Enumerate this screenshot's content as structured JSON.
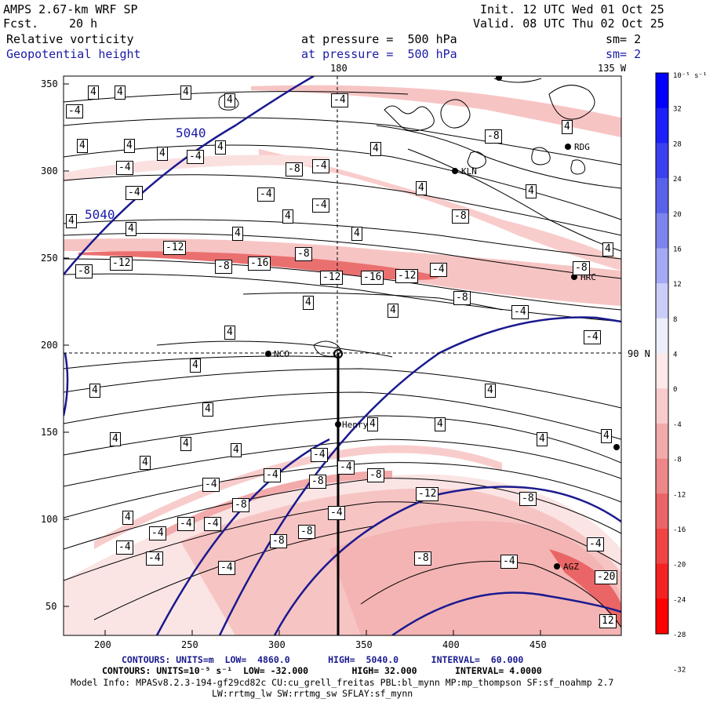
{
  "header": {
    "title": "AMPS 2.67-km WRF SP",
    "fcst_label": "Fcst.",
    "fcst_value": "20 h",
    "init": "Init. 12 UTC Wed 01 Oct 25",
    "valid": "Valid. 08 UTC Thu 02 Oct 25",
    "field1": "Relative vorticity",
    "field2": "Geopotential height",
    "pressure1": "at pressure =  500 hPa",
    "pressure2": "at pressure =  500 hPa",
    "sm1": "sm= 2",
    "sm2": "sm= 2"
  },
  "map": {
    "lon_180": "180",
    "lon_135w": "135 W",
    "lat_90n": "90 N",
    "x_ticks": [
      "200",
      "250",
      "300",
      "350",
      "400",
      "450"
    ],
    "y_ticks": [
      "350",
      "300",
      "250",
      "200",
      "150",
      "100",
      "50"
    ],
    "stations": {
      "nco": "NCO",
      "henry": "Henry",
      "kln": "KLN",
      "rdg": "RDG",
      "hrc": "HRC",
      "agz": "AGZ"
    },
    "height_labels": [
      "5040",
      "5040"
    ],
    "vort_labels": {
      "neg4": "-4",
      "neg8": "-8",
      "neg12": "-12",
      "neg16": "-16",
      "neg20": "-20",
      "pos4": "4",
      "pos12": "12"
    }
  },
  "colorbar": {
    "unit": "10⁻⁵ s⁻¹",
    "labels": [
      "32",
      "28",
      "24",
      "20",
      "16",
      "12",
      "8",
      "4",
      "0",
      "-4",
      "-8",
      "-12",
      "-16",
      "-20",
      "-24",
      "-28",
      "-32"
    ],
    "colors_top": [
      "#0000ff",
      "#1c20f8",
      "#3a40ef",
      "#5862ea",
      "#7c84ee",
      "#a3a9f2",
      "#c9cdf8",
      "#eceefc"
    ],
    "colors_bottom": [
      "#fde9e9",
      "#f9cccc",
      "#f3aaaa",
      "#ee8888",
      "#ea6565",
      "#f04444",
      "#f52222",
      "#ff0000"
    ]
  },
  "footer": {
    "line1": "CONTOURS: UNITS=m  LOW=  4860.0       HIGH=  5040.0      INTERVAL=  60.000",
    "line2": "CONTOURS: UNITS=10⁻⁵ s⁻¹  LOW= -32.000        HIGH= 32.000       INTERVAL= 4.0000",
    "line3": "Model Info: MPASv8.2.3-194-gf29cd82c CU:cu_grell_freitas PBL:bl_mynn MP:mp_thompson SF:sf_noahmp 2.7",
    "line4": "LW:rrtmg_lw SW:rrtmg_sw SFLAY:sf_mynn"
  }
}
